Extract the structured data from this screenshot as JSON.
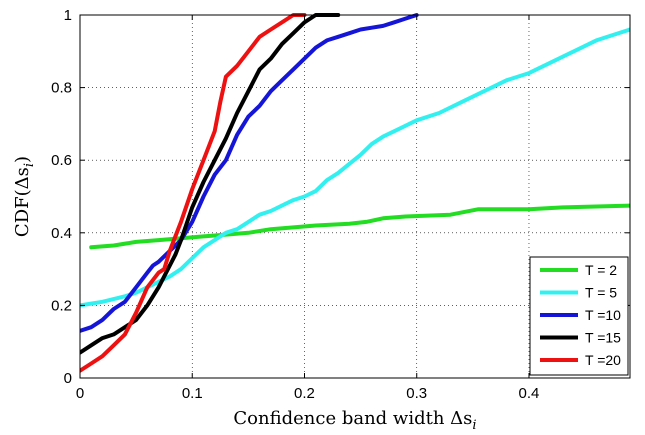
{
  "chart_data": {
    "type": "line",
    "xlabel": "Confidence band width Δs",
    "xlabel_subscript": "i",
    "ylabel": "CDF(Δs",
    "ylabel_subscript": "i",
    "ylabel_close": ")",
    "xlim": [
      0,
      0.49
    ],
    "ylim": [
      0,
      1
    ],
    "xticks": [
      0,
      0.1,
      0.2,
      0.3,
      0.4
    ],
    "xtick_labels": [
      "0",
      "0.1",
      "0.2",
      "0.3",
      "0.4"
    ],
    "yticks": [
      0,
      0.2,
      0.4,
      0.6,
      0.8,
      1
    ],
    "ytick_labels": [
      "0",
      "0.2",
      "0.4",
      "0.6",
      "0.8",
      "1"
    ],
    "grid": true,
    "legend_position": "bottom-right",
    "series": [
      {
        "name": "T = 2",
        "color": "#22dd22",
        "points": [
          [
            0.01,
            0.36
          ],
          [
            0.03,
            0.365
          ],
          [
            0.05,
            0.375
          ],
          [
            0.07,
            0.38
          ],
          [
            0.09,
            0.385
          ],
          [
            0.11,
            0.39
          ],
          [
            0.13,
            0.395
          ],
          [
            0.15,
            0.4
          ],
          [
            0.17,
            0.41
          ],
          [
            0.19,
            0.415
          ],
          [
            0.21,
            0.42
          ],
          [
            0.24,
            0.425
          ],
          [
            0.255,
            0.43
          ],
          [
            0.27,
            0.44
          ],
          [
            0.29,
            0.445
          ],
          [
            0.33,
            0.45
          ],
          [
            0.355,
            0.465
          ],
          [
            0.4,
            0.465
          ],
          [
            0.43,
            0.47
          ],
          [
            0.49,
            0.475
          ]
        ]
      },
      {
        "name": "T = 5",
        "color": "#33f0f0",
        "points": [
          [
            0,
            0.2
          ],
          [
            0.01,
            0.205
          ],
          [
            0.02,
            0.21
          ],
          [
            0.04,
            0.225
          ],
          [
            0.05,
            0.235
          ],
          [
            0.06,
            0.25
          ],
          [
            0.07,
            0.265
          ],
          [
            0.08,
            0.28
          ],
          [
            0.09,
            0.3
          ],
          [
            0.1,
            0.33
          ],
          [
            0.11,
            0.36
          ],
          [
            0.12,
            0.38
          ],
          [
            0.13,
            0.4
          ],
          [
            0.14,
            0.41
          ],
          [
            0.15,
            0.43
          ],
          [
            0.16,
            0.45
          ],
          [
            0.17,
            0.46
          ],
          [
            0.18,
            0.475
          ],
          [
            0.19,
            0.49
          ],
          [
            0.2,
            0.5
          ],
          [
            0.21,
            0.515
          ],
          [
            0.22,
            0.545
          ],
          [
            0.23,
            0.565
          ],
          [
            0.24,
            0.59
          ],
          [
            0.25,
            0.615
          ],
          [
            0.26,
            0.645
          ],
          [
            0.27,
            0.665
          ],
          [
            0.28,
            0.68
          ],
          [
            0.3,
            0.71
          ],
          [
            0.32,
            0.73
          ],
          [
            0.34,
            0.76
          ],
          [
            0.36,
            0.79
          ],
          [
            0.38,
            0.82
          ],
          [
            0.4,
            0.84
          ],
          [
            0.42,
            0.87
          ],
          [
            0.44,
            0.9
          ],
          [
            0.46,
            0.93
          ],
          [
            0.49,
            0.96
          ]
        ]
      },
      {
        "name": "T =10",
        "color": "#1515d8",
        "points": [
          [
            0,
            0.13
          ],
          [
            0.01,
            0.14
          ],
          [
            0.02,
            0.16
          ],
          [
            0.03,
            0.19
          ],
          [
            0.04,
            0.21
          ],
          [
            0.05,
            0.25
          ],
          [
            0.06,
            0.29
          ],
          [
            0.065,
            0.31
          ],
          [
            0.07,
            0.32
          ],
          [
            0.08,
            0.35
          ],
          [
            0.09,
            0.38
          ],
          [
            0.1,
            0.43
          ],
          [
            0.11,
            0.5
          ],
          [
            0.12,
            0.56
          ],
          [
            0.13,
            0.6
          ],
          [
            0.14,
            0.67
          ],
          [
            0.15,
            0.72
          ],
          [
            0.16,
            0.75
          ],
          [
            0.17,
            0.79
          ],
          [
            0.18,
            0.82
          ],
          [
            0.19,
            0.85
          ],
          [
            0.2,
            0.88
          ],
          [
            0.21,
            0.91
          ],
          [
            0.22,
            0.93
          ],
          [
            0.23,
            0.94
          ],
          [
            0.24,
            0.95
          ],
          [
            0.25,
            0.96
          ],
          [
            0.26,
            0.965
          ],
          [
            0.27,
            0.97
          ],
          [
            0.28,
            0.98
          ],
          [
            0.29,
            0.99
          ],
          [
            0.3,
            1.0
          ]
        ]
      },
      {
        "name": "T =15",
        "color": "#000000",
        "points": [
          [
            0,
            0.07
          ],
          [
            0.01,
            0.09
          ],
          [
            0.02,
            0.11
          ],
          [
            0.03,
            0.12
          ],
          [
            0.04,
            0.14
          ],
          [
            0.05,
            0.16
          ],
          [
            0.06,
            0.2
          ],
          [
            0.07,
            0.25
          ],
          [
            0.08,
            0.31
          ],
          [
            0.085,
            0.34
          ],
          [
            0.09,
            0.38
          ],
          [
            0.1,
            0.47
          ],
          [
            0.11,
            0.54
          ],
          [
            0.12,
            0.6
          ],
          [
            0.13,
            0.66
          ],
          [
            0.14,
            0.73
          ],
          [
            0.15,
            0.79
          ],
          [
            0.16,
            0.85
          ],
          [
            0.17,
            0.88
          ],
          [
            0.18,
            0.92
          ],
          [
            0.19,
            0.95
          ],
          [
            0.2,
            0.98
          ],
          [
            0.21,
            1.0
          ],
          [
            0.23,
            1.0
          ]
        ]
      },
      {
        "name": "T =20",
        "color": "#ee1111",
        "points": [
          [
            0,
            0.02
          ],
          [
            0.01,
            0.04
          ],
          [
            0.02,
            0.06
          ],
          [
            0.03,
            0.09
          ],
          [
            0.04,
            0.12
          ],
          [
            0.05,
            0.18
          ],
          [
            0.06,
            0.25
          ],
          [
            0.07,
            0.29
          ],
          [
            0.075,
            0.3
          ],
          [
            0.08,
            0.35
          ],
          [
            0.09,
            0.43
          ],
          [
            0.1,
            0.52
          ],
          [
            0.11,
            0.6
          ],
          [
            0.12,
            0.68
          ],
          [
            0.125,
            0.76
          ],
          [
            0.13,
            0.83
          ],
          [
            0.14,
            0.86
          ],
          [
            0.15,
            0.9
          ],
          [
            0.16,
            0.94
          ],
          [
            0.17,
            0.96
          ],
          [
            0.18,
            0.98
          ],
          [
            0.19,
            1.0
          ],
          [
            0.2,
            1.0
          ]
        ]
      }
    ]
  }
}
